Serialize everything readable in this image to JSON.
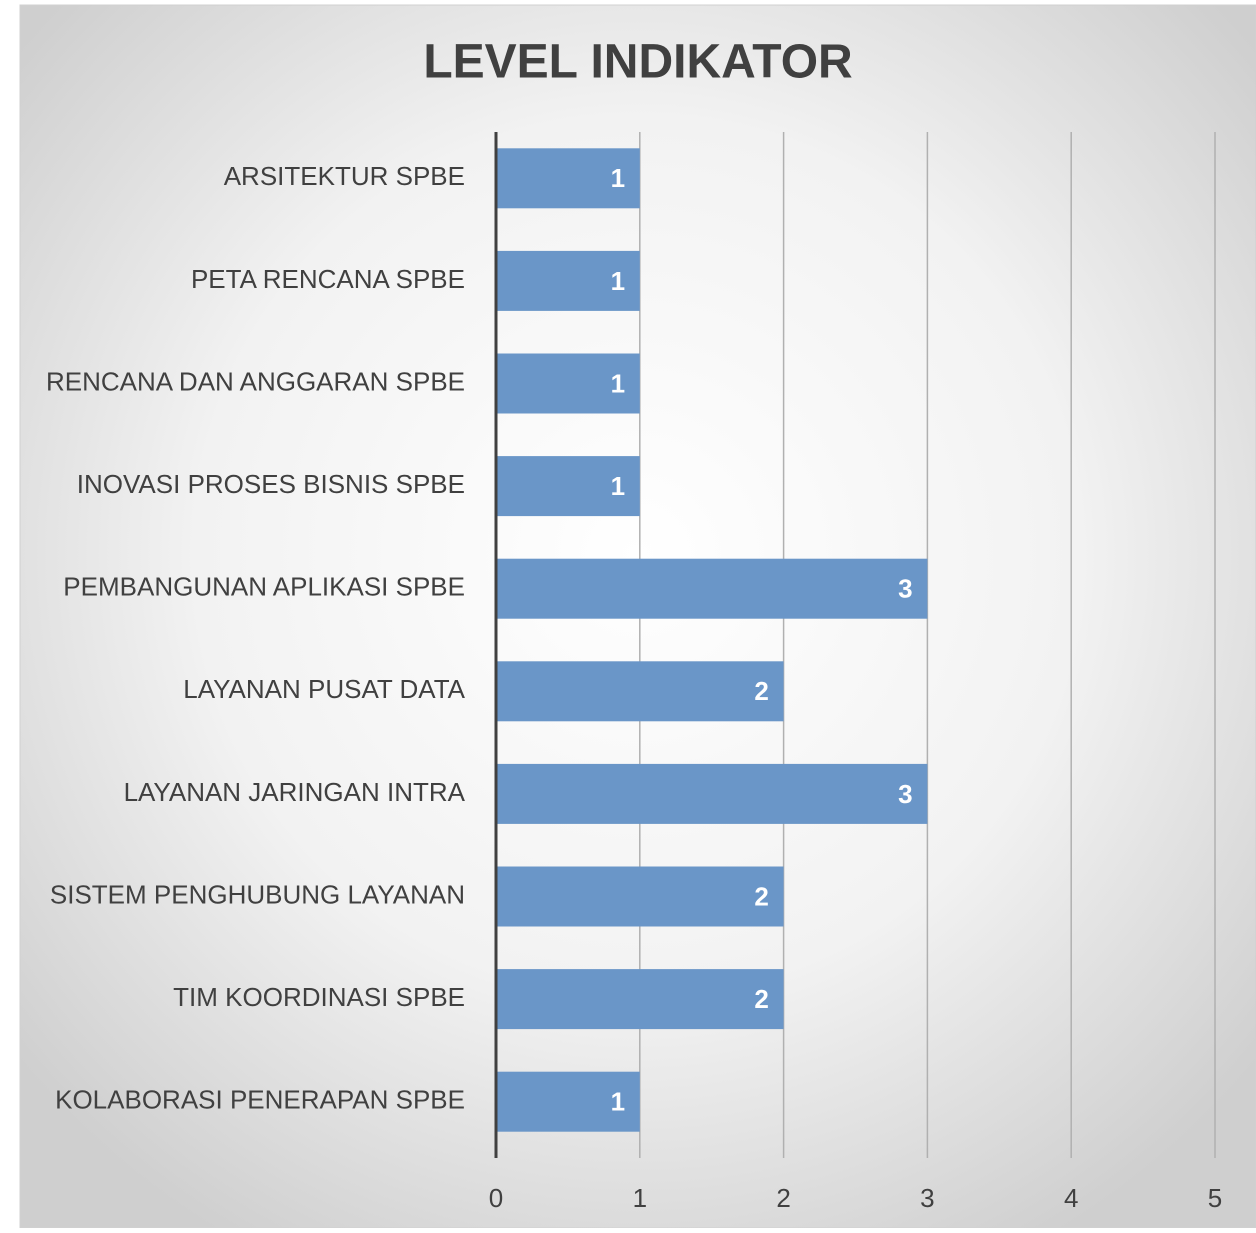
{
  "chart_data": {
    "type": "bar",
    "orientation": "horizontal",
    "title": "LEVEL INDIKATOR",
    "categories": [
      "ARSITEKTUR SPBE",
      "PETA RENCANA SPBE",
      "RENCANA DAN ANGGARAN SPBE",
      "INOVASI PROSES BISNIS SPBE",
      "PEMBANGUNAN APLIKASI SPBE",
      "LAYANAN PUSAT DATA",
      "LAYANAN JARINGAN INTRA",
      "SISTEM PENGHUBUNG LAYANAN",
      "TIM KOORDINASI SPBE",
      "KOLABORASI PENERAPAN SPBE"
    ],
    "values": [
      1,
      1,
      1,
      1,
      3,
      2,
      3,
      2,
      2,
      1
    ],
    "color": "#6a96c8",
    "xlim": [
      0,
      5
    ],
    "xticks": [
      0,
      1,
      2,
      3,
      4,
      5
    ],
    "grid": true
  }
}
